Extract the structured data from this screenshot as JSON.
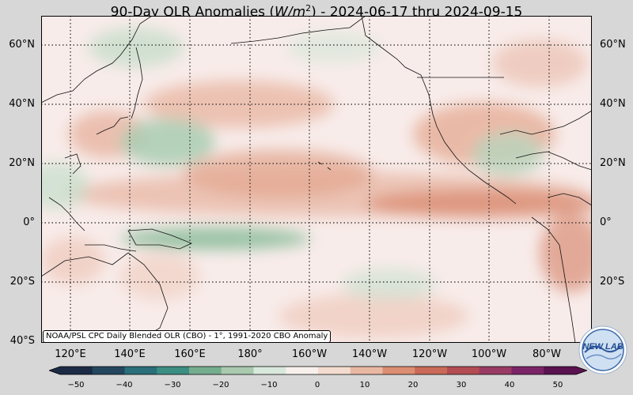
{
  "title_prefix": "90-Day OLR Anomalies (",
  "title_unit": "W/m",
  "title_exp": "2",
  "title_suffix": ") - 2024-06-17 thru 2024-09-15",
  "latitudes": [
    "60°N",
    "40°N",
    "20°N",
    "0°",
    "20°S",
    "40°S"
  ],
  "longitudes": [
    "120°E",
    "140°E",
    "160°E",
    "180°",
    "160°W",
    "140°W",
    "120°W",
    "100°W",
    "80°W"
  ],
  "credit": "NOAA/PSL CPC Daily Blended OLR (CBO) - 1°, 1991-2020 CBO Anomaly",
  "colorbar": {
    "ticks": [
      "−50",
      "−40",
      "−30",
      "−20",
      "−10",
      "0",
      "10",
      "20",
      "30",
      "40",
      "50"
    ],
    "colors": [
      "#1c2b45",
      "#24475f",
      "#2a6f79",
      "#3b8e82",
      "#75ad8f",
      "#aacab0",
      "#d9e8dc",
      "#f8f0ec",
      "#f3dccf",
      "#e9b8a2",
      "#db8e72",
      "#c96a58",
      "#b34d53",
      "#9a3a64",
      "#7a2467",
      "#5a1250"
    ]
  },
  "logo_text": "NEW LAB"
}
